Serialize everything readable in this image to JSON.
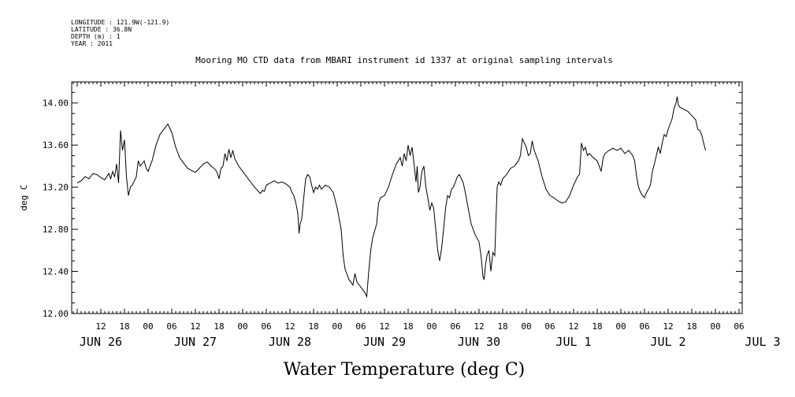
{
  "meta": {
    "longitude": "LONGITUDE : 121.9W(-121.9)",
    "latitude": "LATITUDE : 36.8N",
    "depth": "DEPTH (m) : 1",
    "year": "YEAR : 2011"
  },
  "chart_data": {
    "type": "line",
    "title": "Mooring MO CTD data from MBARI instrument id 1337 at original sampling intervals",
    "xlabel": "Water Temperature (deg C)",
    "ylabel": "deg C",
    "ylim": [
      12.0,
      14.2
    ],
    "yticks": [
      "12.00",
      "12.40",
      "12.80",
      "13.20",
      "13.60",
      "14.00"
    ],
    "xlim_hours": [
      0,
      170
    ],
    "hour_ticks": [
      "12",
      "18",
      "00",
      "06",
      "12",
      "18",
      "00",
      "06",
      "12",
      "18",
      "00",
      "06",
      "12",
      "18",
      "00",
      "06",
      "12",
      "18",
      "00",
      "06",
      "12",
      "18",
      "00",
      "06",
      "12",
      "18",
      "00",
      "06"
    ],
    "day_labels": [
      "JUN 26",
      "JUN 27",
      "JUN 28",
      "JUN 29",
      "JUN 30",
      "JUL  1",
      "JUL  2",
      "JUL  3"
    ],
    "grid": false,
    "series": [
      {
        "values": [
          [
            0.0,
            13.24
          ],
          [
            1.0,
            13.26
          ],
          [
            2.0,
            13.3
          ],
          [
            3.0,
            13.28
          ],
          [
            4.0,
            13.33
          ],
          [
            5.0,
            13.32
          ],
          [
            6.0,
            13.29
          ],
          [
            7.0,
            13.27
          ],
          [
            8.0,
            13.33
          ],
          [
            8.5,
            13.28
          ],
          [
            9.0,
            13.35
          ],
          [
            9.5,
            13.3
          ],
          [
            10.0,
            13.42
          ],
          [
            10.5,
            13.24
          ],
          [
            11.0,
            13.74
          ],
          [
            11.5,
            13.55
          ],
          [
            12.0,
            13.65
          ],
          [
            12.5,
            13.3
          ],
          [
            13.0,
            13.12
          ],
          [
            13.5,
            13.2
          ],
          [
            14.0,
            13.22
          ],
          [
            15.0,
            13.3
          ],
          [
            15.5,
            13.45
          ],
          [
            16.0,
            13.4
          ],
          [
            17.0,
            13.45
          ],
          [
            17.5,
            13.38
          ],
          [
            18.0,
            13.35
          ],
          [
            19.0,
            13.45
          ],
          [
            20.0,
            13.6
          ],
          [
            21.0,
            13.7
          ],
          [
            22.0,
            13.75
          ],
          [
            23.0,
            13.8
          ],
          [
            24.0,
            13.72
          ],
          [
            25.0,
            13.58
          ],
          [
            26.0,
            13.48
          ],
          [
            27.0,
            13.43
          ],
          [
            28.0,
            13.38
          ],
          [
            29.0,
            13.36
          ],
          [
            30.0,
            13.34
          ],
          [
            31.0,
            13.38
          ],
          [
            32.0,
            13.42
          ],
          [
            33.0,
            13.44
          ],
          [
            34.0,
            13.4
          ],
          [
            35.0,
            13.37
          ],
          [
            35.5,
            13.34
          ],
          [
            36.0,
            13.28
          ],
          [
            36.5,
            13.38
          ],
          [
            37.0,
            13.4
          ],
          [
            37.5,
            13.52
          ],
          [
            38.0,
            13.45
          ],
          [
            38.5,
            13.56
          ],
          [
            39.0,
            13.48
          ],
          [
            39.5,
            13.55
          ],
          [
            40.0,
            13.47
          ],
          [
            41.0,
            13.4
          ],
          [
            42.0,
            13.35
          ],
          [
            43.0,
            13.3
          ],
          [
            44.0,
            13.25
          ],
          [
            45.0,
            13.2
          ],
          [
            46.0,
            13.16
          ],
          [
            46.5,
            13.14
          ],
          [
            47.0,
            13.17
          ],
          [
            47.5,
            13.16
          ],
          [
            48.0,
            13.22
          ],
          [
            49.0,
            13.24
          ],
          [
            50.0,
            13.26
          ],
          [
            51.0,
            13.24
          ],
          [
            52.0,
            13.25
          ],
          [
            53.0,
            13.23
          ],
          [
            54.0,
            13.2
          ],
          [
            54.5,
            13.15
          ],
          [
            55.0,
            13.12
          ],
          [
            55.5,
            13.05
          ],
          [
            56.0,
            12.95
          ],
          [
            56.3,
            12.76
          ],
          [
            56.6,
            12.85
          ],
          [
            57.0,
            12.9
          ],
          [
            57.5,
            13.1
          ],
          [
            58.0,
            13.28
          ],
          [
            58.5,
            13.32
          ],
          [
            59.0,
            13.3
          ],
          [
            59.5,
            13.22
          ],
          [
            60.0,
            13.15
          ],
          [
            60.5,
            13.2
          ],
          [
            61.0,
            13.18
          ],
          [
            61.5,
            13.22
          ],
          [
            62.0,
            13.18
          ],
          [
            63.0,
            13.22
          ],
          [
            64.0,
            13.2
          ],
          [
            65.0,
            13.15
          ],
          [
            66.0,
            13.0
          ],
          [
            67.0,
            12.8
          ],
          [
            67.5,
            12.55
          ],
          [
            68.0,
            12.42
          ],
          [
            69.0,
            12.32
          ],
          [
            70.0,
            12.27
          ],
          [
            70.5,
            12.38
          ],
          [
            71.0,
            12.3
          ],
          [
            72.0,
            12.25
          ],
          [
            73.0,
            12.2
          ],
          [
            73.5,
            12.16
          ],
          [
            74.0,
            12.4
          ],
          [
            74.5,
            12.6
          ],
          [
            75.0,
            12.72
          ],
          [
            76.0,
            12.85
          ],
          [
            76.5,
            13.05
          ],
          [
            77.0,
            13.1
          ],
          [
            78.0,
            13.12
          ],
          [
            79.0,
            13.2
          ],
          [
            80.0,
            13.32
          ],
          [
            81.0,
            13.42
          ],
          [
            82.0,
            13.48
          ],
          [
            82.5,
            13.4
          ],
          [
            83.0,
            13.52
          ],
          [
            83.5,
            13.45
          ],
          [
            84.0,
            13.6
          ],
          [
            84.5,
            13.5
          ],
          [
            85.0,
            13.58
          ],
          [
            85.5,
            13.42
          ],
          [
            86.0,
            13.25
          ],
          [
            86.3,
            13.4
          ],
          [
            86.6,
            13.15
          ],
          [
            87.0,
            13.2
          ],
          [
            87.5,
            13.35
          ],
          [
            88.0,
            13.4
          ],
          [
            88.5,
            13.2
          ],
          [
            89.0,
            13.1
          ],
          [
            89.5,
            12.98
          ],
          [
            90.0,
            13.05
          ],
          [
            90.5,
            13.0
          ],
          [
            91.0,
            12.8
          ],
          [
            91.5,
            12.6
          ],
          [
            92.0,
            12.5
          ],
          [
            92.5,
            12.62
          ],
          [
            93.0,
            12.8
          ],
          [
            93.5,
            13.0
          ],
          [
            94.0,
            13.12
          ],
          [
            94.5,
            13.1
          ],
          [
            95.0,
            13.18
          ],
          [
            95.5,
            13.2
          ],
          [
            96.0,
            13.25
          ],
          [
            96.5,
            13.3
          ],
          [
            97.0,
            13.32
          ],
          [
            97.5,
            13.28
          ],
          [
            98.0,
            13.24
          ],
          [
            98.5,
            13.15
          ],
          [
            99.0,
            13.05
          ],
          [
            99.5,
            12.95
          ],
          [
            100.0,
            12.85
          ],
          [
            101.0,
            12.75
          ],
          [
            102.0,
            12.68
          ],
          [
            102.5,
            12.55
          ],
          [
            103.0,
            12.35
          ],
          [
            103.3,
            12.32
          ],
          [
            103.6,
            12.45
          ],
          [
            104.0,
            12.55
          ],
          [
            104.5,
            12.6
          ],
          [
            105.0,
            12.4
          ],
          [
            105.5,
            12.58
          ],
          [
            106.0,
            12.55
          ],
          [
            106.3,
            12.9
          ],
          [
            106.6,
            13.2
          ],
          [
            107.0,
            13.25
          ],
          [
            107.5,
            13.22
          ],
          [
            108.0,
            13.28
          ],
          [
            109.0,
            13.32
          ],
          [
            109.5,
            13.35
          ],
          [
            110.0,
            13.38
          ],
          [
            111.0,
            13.4
          ],
          [
            112.0,
            13.45
          ],
          [
            112.5,
            13.5
          ],
          [
            113.0,
            13.66
          ],
          [
            113.5,
            13.62
          ],
          [
            114.0,
            13.58
          ],
          [
            114.5,
            13.5
          ],
          [
            115.0,
            13.52
          ],
          [
            115.5,
            13.64
          ],
          [
            116.0,
            13.55
          ],
          [
            117.0,
            13.45
          ],
          [
            118.0,
            13.3
          ],
          [
            119.0,
            13.18
          ],
          [
            120.0,
            13.12
          ],
          [
            121.0,
            13.1
          ],
          [
            122.0,
            13.07
          ],
          [
            123.0,
            13.05
          ],
          [
            124.0,
            13.06
          ],
          [
            125.0,
            13.12
          ],
          [
            126.0,
            13.22
          ],
          [
            127.0,
            13.3
          ],
          [
            127.5,
            13.32
          ],
          [
            128.0,
            13.62
          ],
          [
            128.5,
            13.55
          ],
          [
            129.0,
            13.58
          ],
          [
            129.5,
            13.5
          ],
          [
            130.0,
            13.52
          ],
          [
            131.0,
            13.48
          ],
          [
            132.0,
            13.45
          ],
          [
            132.5,
            13.4
          ],
          [
            133.0,
            13.35
          ],
          [
            133.5,
            13.48
          ],
          [
            134.0,
            13.52
          ],
          [
            135.0,
            13.55
          ],
          [
            136.0,
            13.57
          ],
          [
            137.0,
            13.55
          ],
          [
            138.0,
            13.57
          ],
          [
            139.0,
            13.52
          ],
          [
            140.0,
            13.55
          ],
          [
            141.0,
            13.5
          ],
          [
            141.5,
            13.45
          ],
          [
            142.0,
            13.3
          ],
          [
            142.5,
            13.2
          ],
          [
            143.0,
            13.15
          ],
          [
            143.5,
            13.12
          ],
          [
            144.0,
            13.1
          ],
          [
            144.5,
            13.15
          ],
          [
            145.0,
            13.18
          ],
          [
            145.5,
            13.22
          ],
          [
            146.0,
            13.35
          ],
          [
            146.5,
            13.42
          ],
          [
            147.0,
            13.5
          ],
          [
            147.5,
            13.58
          ],
          [
            148.0,
            13.52
          ],
          [
            148.5,
            13.62
          ],
          [
            149.0,
            13.7
          ],
          [
            149.5,
            13.68
          ],
          [
            150.0,
            13.75
          ],
          [
            150.5,
            13.8
          ],
          [
            151.0,
            13.85
          ],
          [
            151.5,
            13.95
          ],
          [
            152.0,
            14.0
          ],
          [
            152.3,
            14.06
          ],
          [
            152.6,
            13.98
          ],
          [
            153.0,
            13.96
          ],
          [
            154.0,
            13.94
          ],
          [
            155.0,
            13.92
          ],
          [
            156.0,
            13.88
          ],
          [
            157.0,
            13.84
          ],
          [
            157.5,
            13.75
          ],
          [
            158.0,
            13.74
          ],
          [
            158.5,
            13.7
          ],
          [
            159.0,
            13.62
          ],
          [
            159.5,
            13.55
          ]
        ]
      }
    ]
  }
}
